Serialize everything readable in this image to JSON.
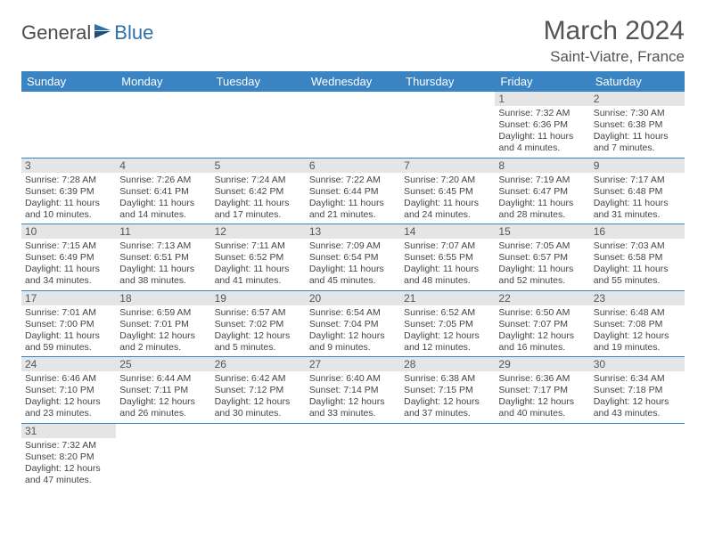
{
  "brand": {
    "name1": "General",
    "name2": "Blue"
  },
  "title": "March 2024",
  "location": "Saint-Viatre, France",
  "colors": {
    "header_bg": "#3a84c4",
    "header_fg": "#ffffff",
    "daynum_bg": "#e5e5e5",
    "rule": "#3a84c4",
    "text": "#444444",
    "brand_blue": "#2f6fab"
  },
  "typography": {
    "title_fontsize": 30,
    "location_fontsize": 17,
    "dayheader_fontsize": 13,
    "cell_fontsize": 10.5
  },
  "weekdays": [
    "Sunday",
    "Monday",
    "Tuesday",
    "Wednesday",
    "Thursday",
    "Friday",
    "Saturday"
  ],
  "weeks": [
    [
      {
        "blank": true
      },
      {
        "blank": true
      },
      {
        "blank": true
      },
      {
        "blank": true
      },
      {
        "blank": true
      },
      {
        "day": "1",
        "sunrise": "7:32 AM",
        "sunset": "6:36 PM",
        "daylight": "11 hours and 4 minutes."
      },
      {
        "day": "2",
        "sunrise": "7:30 AM",
        "sunset": "6:38 PM",
        "daylight": "11 hours and 7 minutes."
      }
    ],
    [
      {
        "day": "3",
        "sunrise": "7:28 AM",
        "sunset": "6:39 PM",
        "daylight": "11 hours and 10 minutes."
      },
      {
        "day": "4",
        "sunrise": "7:26 AM",
        "sunset": "6:41 PM",
        "daylight": "11 hours and 14 minutes."
      },
      {
        "day": "5",
        "sunrise": "7:24 AM",
        "sunset": "6:42 PM",
        "daylight": "11 hours and 17 minutes."
      },
      {
        "day": "6",
        "sunrise": "7:22 AM",
        "sunset": "6:44 PM",
        "daylight": "11 hours and 21 minutes."
      },
      {
        "day": "7",
        "sunrise": "7:20 AM",
        "sunset": "6:45 PM",
        "daylight": "11 hours and 24 minutes."
      },
      {
        "day": "8",
        "sunrise": "7:19 AM",
        "sunset": "6:47 PM",
        "daylight": "11 hours and 28 minutes."
      },
      {
        "day": "9",
        "sunrise": "7:17 AM",
        "sunset": "6:48 PM",
        "daylight": "11 hours and 31 minutes."
      }
    ],
    [
      {
        "day": "10",
        "sunrise": "7:15 AM",
        "sunset": "6:49 PM",
        "daylight": "11 hours and 34 minutes."
      },
      {
        "day": "11",
        "sunrise": "7:13 AM",
        "sunset": "6:51 PM",
        "daylight": "11 hours and 38 minutes."
      },
      {
        "day": "12",
        "sunrise": "7:11 AM",
        "sunset": "6:52 PM",
        "daylight": "11 hours and 41 minutes."
      },
      {
        "day": "13",
        "sunrise": "7:09 AM",
        "sunset": "6:54 PM",
        "daylight": "11 hours and 45 minutes."
      },
      {
        "day": "14",
        "sunrise": "7:07 AM",
        "sunset": "6:55 PM",
        "daylight": "11 hours and 48 minutes."
      },
      {
        "day": "15",
        "sunrise": "7:05 AM",
        "sunset": "6:57 PM",
        "daylight": "11 hours and 52 minutes."
      },
      {
        "day": "16",
        "sunrise": "7:03 AM",
        "sunset": "6:58 PM",
        "daylight": "11 hours and 55 minutes."
      }
    ],
    [
      {
        "day": "17",
        "sunrise": "7:01 AM",
        "sunset": "7:00 PM",
        "daylight": "11 hours and 59 minutes."
      },
      {
        "day": "18",
        "sunrise": "6:59 AM",
        "sunset": "7:01 PM",
        "daylight": "12 hours and 2 minutes."
      },
      {
        "day": "19",
        "sunrise": "6:57 AM",
        "sunset": "7:02 PM",
        "daylight": "12 hours and 5 minutes."
      },
      {
        "day": "20",
        "sunrise": "6:54 AM",
        "sunset": "7:04 PM",
        "daylight": "12 hours and 9 minutes."
      },
      {
        "day": "21",
        "sunrise": "6:52 AM",
        "sunset": "7:05 PM",
        "daylight": "12 hours and 12 minutes."
      },
      {
        "day": "22",
        "sunrise": "6:50 AM",
        "sunset": "7:07 PM",
        "daylight": "12 hours and 16 minutes."
      },
      {
        "day": "23",
        "sunrise": "6:48 AM",
        "sunset": "7:08 PM",
        "daylight": "12 hours and 19 minutes."
      }
    ],
    [
      {
        "day": "24",
        "sunrise": "6:46 AM",
        "sunset": "7:10 PM",
        "daylight": "12 hours and 23 minutes."
      },
      {
        "day": "25",
        "sunrise": "6:44 AM",
        "sunset": "7:11 PM",
        "daylight": "12 hours and 26 minutes."
      },
      {
        "day": "26",
        "sunrise": "6:42 AM",
        "sunset": "7:12 PM",
        "daylight": "12 hours and 30 minutes."
      },
      {
        "day": "27",
        "sunrise": "6:40 AM",
        "sunset": "7:14 PM",
        "daylight": "12 hours and 33 minutes."
      },
      {
        "day": "28",
        "sunrise": "6:38 AM",
        "sunset": "7:15 PM",
        "daylight": "12 hours and 37 minutes."
      },
      {
        "day": "29",
        "sunrise": "6:36 AM",
        "sunset": "7:17 PM",
        "daylight": "12 hours and 40 minutes."
      },
      {
        "day": "30",
        "sunrise": "6:34 AM",
        "sunset": "7:18 PM",
        "daylight": "12 hours and 43 minutes."
      }
    ],
    [
      {
        "day": "31",
        "sunrise": "7:32 AM",
        "sunset": "8:20 PM",
        "daylight": "12 hours and 47 minutes."
      },
      {
        "blank": true
      },
      {
        "blank": true
      },
      {
        "blank": true
      },
      {
        "blank": true
      },
      {
        "blank": true
      },
      {
        "blank": true
      }
    ]
  ]
}
